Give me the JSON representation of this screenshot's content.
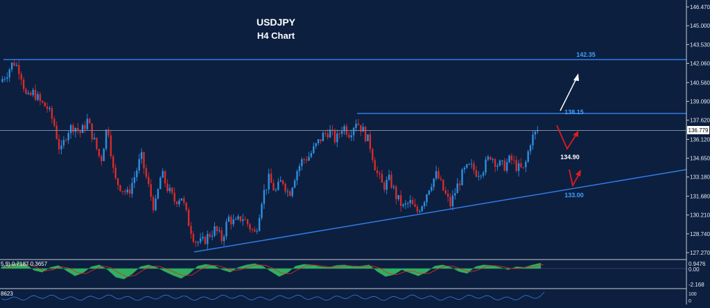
{
  "chart_data": {
    "type": "candlestick",
    "title": "USDJPY",
    "subtitle": "H4 Chart",
    "price_axis": {
      "ticks": [
        "146.470",
        "145.000",
        "143.530",
        "142.060",
        "140.560",
        "139.090",
        "137.620",
        "136.120",
        "134.650",
        "133.180",
        "131.680",
        "130.210",
        "128.740",
        "127.270"
      ],
      "range": [
        127.27,
        146.47
      ],
      "current_price": "136.779"
    },
    "levels": [
      {
        "name": "resistance",
        "value": 142.35,
        "label": "142.35"
      },
      {
        "name": "resistance",
        "value": 138.15,
        "label": "138.15"
      },
      {
        "name": "support-trendline",
        "value": 133.0,
        "label": "133.00"
      }
    ],
    "annotations": [
      {
        "label": "134.90",
        "kind": "pivot"
      }
    ],
    "price_path": [
      140.6,
      141.3,
      142.2,
      141.5,
      139.2,
      139.8,
      139.0,
      138.6,
      137.4,
      135.0,
      136.8,
      137.2,
      136.6,
      137.6,
      136.0,
      134.4,
      137.4,
      133.0,
      132.4,
      131.8,
      133.2,
      134.8,
      132.6,
      130.6,
      133.5,
      132.2,
      131.3,
      131.7,
      129.7,
      128.2,
      128.0,
      128.6,
      129.1,
      128.3,
      130.0,
      129.5,
      130.1,
      129.4,
      128.7,
      131.6,
      133.0,
      132.0,
      133.0,
      131.8,
      133.5,
      134.5,
      134.8,
      135.6,
      136.4,
      136.8,
      136.0,
      137.2,
      136.6,
      137.6,
      136.8,
      135.8,
      133.6,
      132.4,
      133.0,
      131.6,
      130.8,
      131.2,
      130.4,
      131.3,
      132.6,
      133.4,
      132.1,
      131.0,
      132.4,
      133.6,
      134.0,
      133.5,
      133.9,
      134.9,
      134.2,
      134.0,
      134.6,
      133.9,
      133.7,
      136.1,
      136.8
    ],
    "oscillator": {
      "label": "5,9) 0.7187 0.3657",
      "ticks": [
        "0.9476",
        "0.00",
        "-2.168"
      ],
      "range": [
        -2.168,
        0.9476
      ],
      "values": [
        0.3,
        0.6,
        0.9,
        0.7,
        -0.3,
        -0.6,
        0.2,
        0.5,
        -0.4,
        -1.2,
        -0.7,
        0.3,
        0.6,
        -0.2,
        -1.4,
        -1.7,
        -0.9,
        0.3,
        0.6,
        0.2,
        -0.5,
        -1.1,
        -1.6,
        -0.8,
        0.4,
        0.7,
        0.5,
        -0.2,
        -0.6,
        0.2,
        0.6,
        0.8,
        0.4,
        -0.5,
        -1.3,
        -0.7,
        0.4,
        0.7,
        0.6,
        0.3,
        0.2,
        0.5,
        0.6,
        0.3,
        0.4,
        0.6,
        -0.5,
        -1.3,
        -1.0,
        -0.2,
        -0.7,
        -1.2,
        -0.6,
        0.4,
        0.6,
        0.2,
        -0.5,
        -0.8,
        0.3,
        0.6,
        0.5,
        0.2,
        -0.2,
        0.3,
        0.2,
        0.6,
        0.9
      ]
    },
    "rsi": {
      "label": "8623",
      "ticks": [
        "100",
        "0"
      ],
      "range": [
        0,
        100
      ]
    }
  }
}
